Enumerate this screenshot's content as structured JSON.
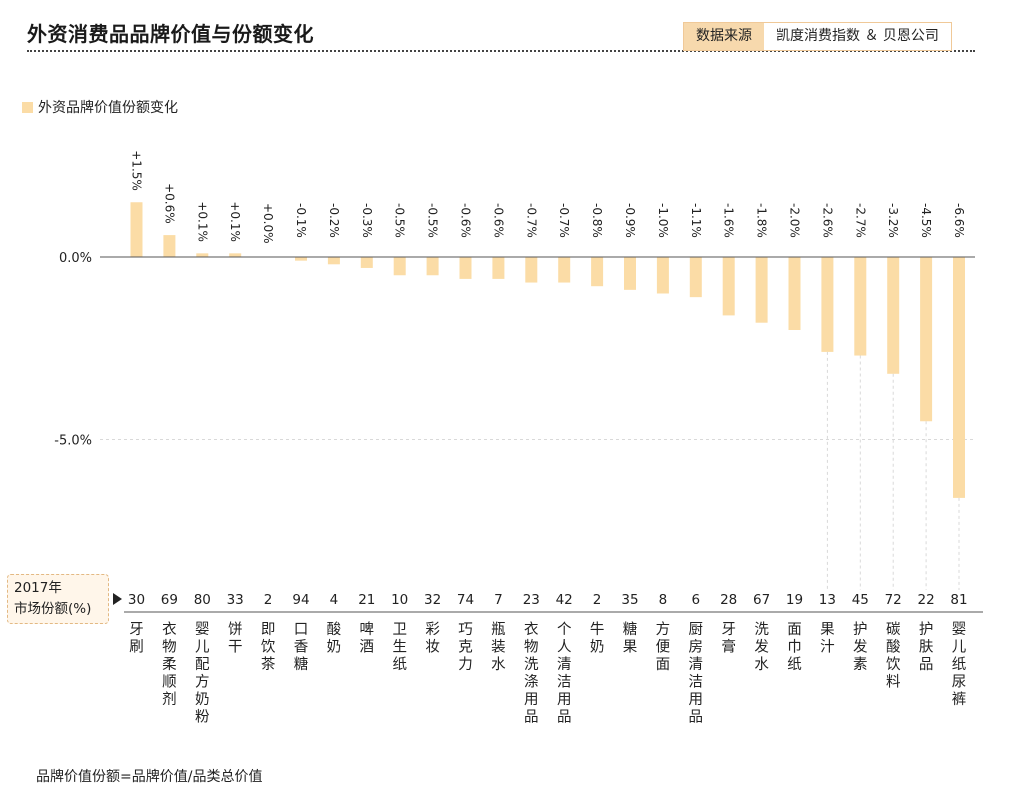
{
  "header": {
    "title": "外资消费品品牌价值与份额变化",
    "source_label": "数据来源",
    "source_value": "凯度消费指数 ＆ 贝恩公司"
  },
  "legend_label": "外资品牌价值份额变化",
  "share_box": {
    "line1": "2017年",
    "line2": "市场份额(%)"
  },
  "note": "品牌价值份额=品牌价值/品类总价值",
  "colors": {
    "bar": "#fbdca6",
    "axis": "#555555",
    "grid": "#d9d9d9"
  },
  "chart_data": {
    "type": "bar",
    "title": "外资品牌价值份额变化",
    "ylabel": "",
    "ylim": [
      -8.3,
      2.9
    ],
    "yticks": [
      0.0,
      -5.0
    ],
    "ytick_labels": [
      "0.0%",
      "-5.0%"
    ],
    "categories": [
      "牙刷",
      "衣物柔顺剂",
      "婴儿配方奶粉",
      "饼干",
      "即饮茶",
      "口香糖",
      "酸奶",
      "啤酒",
      "卫生纸",
      "彩妆",
      "巧克力",
      "瓶装水",
      "衣物洗涤用品",
      "个人清洁用品",
      "牛奶",
      "糖果",
      "方便面",
      "厨房清洁用品",
      "牙膏",
      "洗发水",
      "面巾纸",
      "果汁",
      "护发素",
      "碳酸饮料",
      "护肤品",
      "婴儿纸尿裤"
    ],
    "values": [
      1.5,
      0.6,
      0.1,
      0.1,
      0.0,
      -0.1,
      -0.2,
      -0.3,
      -0.5,
      -0.5,
      -0.6,
      -0.6,
      -0.7,
      -0.7,
      -0.8,
      -0.9,
      -1.0,
      -1.1,
      -1.6,
      -1.8,
      -2.0,
      -2.6,
      -2.7,
      -3.2,
      -4.5,
      -6.6
    ],
    "value_labels": [
      "+1.5%",
      "+0.6%",
      "+0.1%",
      "+0.1%",
      "+0.0%",
      "-0.1%",
      "-0.2%",
      "-0.3%",
      "-0.5%",
      "-0.5%",
      "-0.6%",
      "-0.6%",
      "-0.7%",
      "-0.7%",
      "-0.8%",
      "-0.9%",
      "-1.0%",
      "-1.1%",
      "-1.6%",
      "-1.8%",
      "-2.0%",
      "-2.6%",
      "-2.7%",
      "-3.2%",
      "-4.5%",
      "-6.6%"
    ],
    "market_share_2017": [
      30,
      69,
      80,
      33,
      2,
      94,
      4,
      21,
      10,
      32,
      74,
      7,
      23,
      42,
      2,
      35,
      8,
      6,
      28,
      67,
      19,
      13,
      45,
      72,
      22,
      81
    ],
    "grid": true,
    "legend_position": "top-left"
  }
}
